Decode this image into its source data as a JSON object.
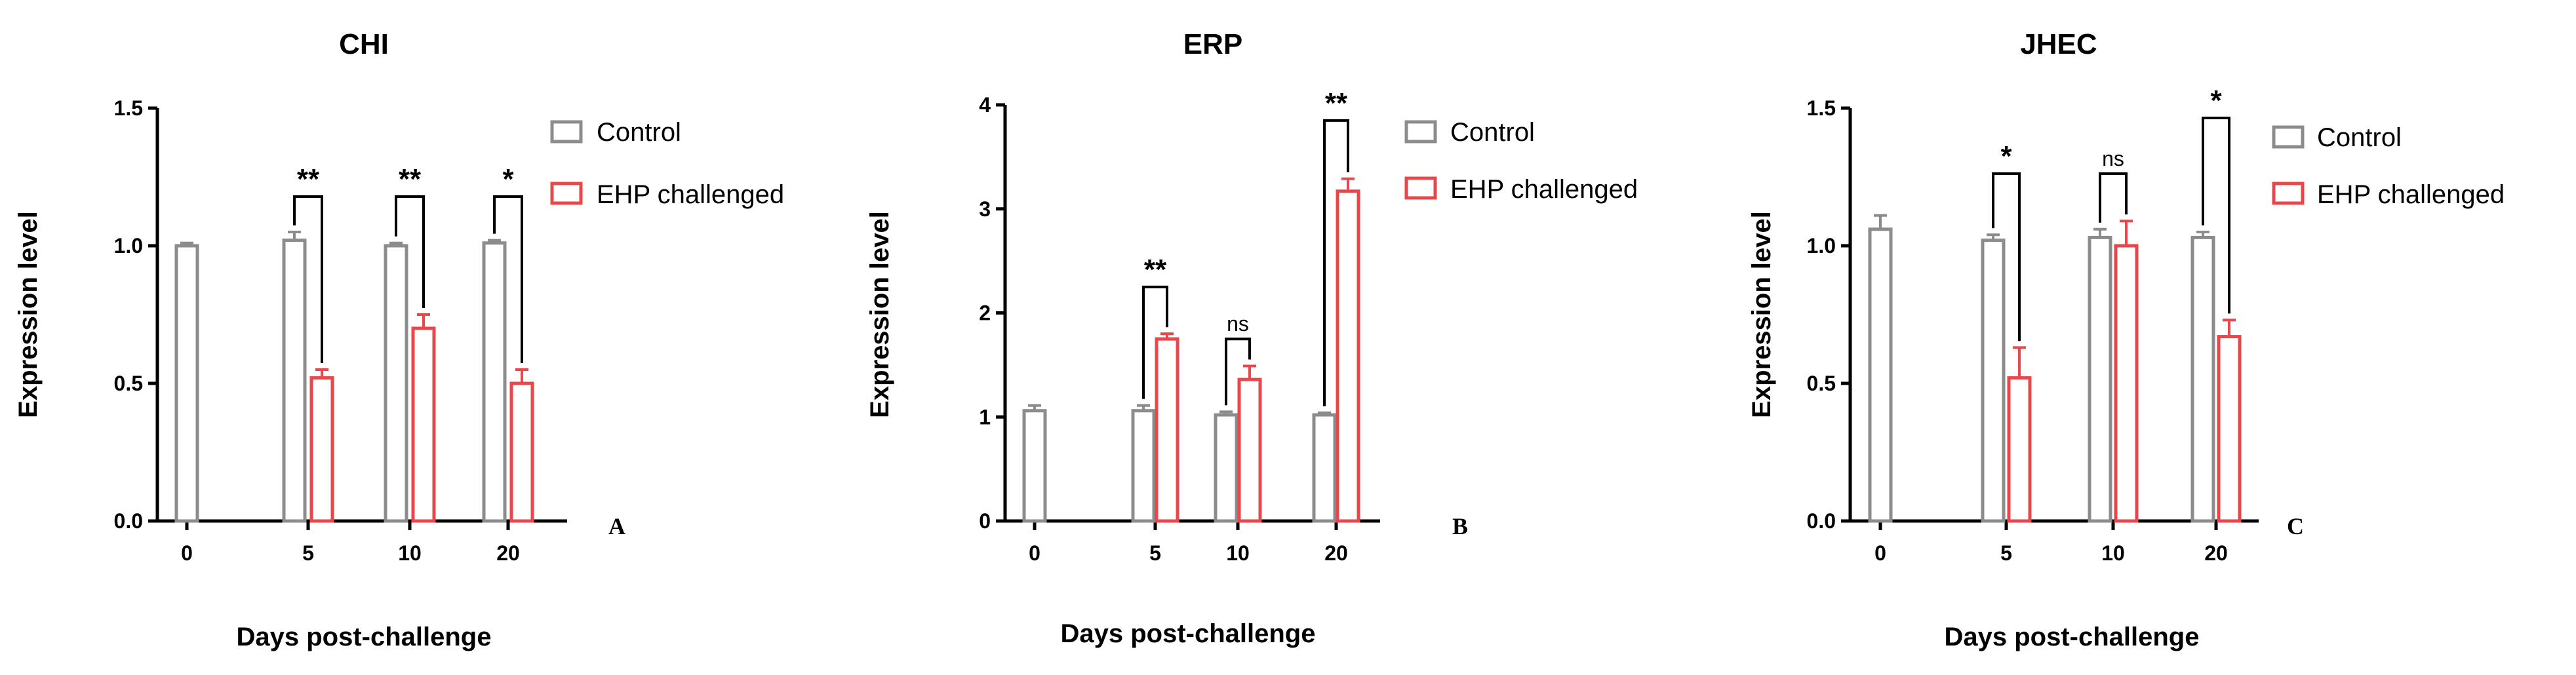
{
  "colors": {
    "control": "#8c8c8c",
    "ehp": "#e8474c",
    "axis": "#000000"
  },
  "chart_data": [
    {
      "type": "bar",
      "panel": "A",
      "title": "CHI",
      "xlabel": "Days post-challenge",
      "ylabel": "Expression level",
      "categories": [
        "0",
        "5",
        "10",
        "20"
      ],
      "ylim": [
        0,
        1.5
      ],
      "yticks": [
        "0.0",
        "0.5",
        "1.0",
        "1.5"
      ],
      "series": [
        {
          "name": "Control",
          "values": [
            1.0,
            1.02,
            1.0,
            1.01
          ],
          "errors": [
            0.01,
            0.03,
            0.01,
            0.01
          ]
        },
        {
          "name": "EHP challenged",
          "values": [
            null,
            0.52,
            0.7,
            0.5
          ],
          "errors": [
            null,
            0.03,
            0.05,
            0.05
          ]
        }
      ],
      "significance": [
        {
          "category": "5",
          "label": "**"
        },
        {
          "category": "10",
          "label": "**"
        },
        {
          "category": "20",
          "label": "*"
        }
      ]
    },
    {
      "type": "bar",
      "panel": "B",
      "title": "ERP",
      "xlabel": "Days post-challenge",
      "ylabel": "Expression level",
      "categories": [
        "0",
        "5",
        "10",
        "20"
      ],
      "ylim": [
        0,
        4
      ],
      "yticks": [
        "0",
        "1",
        "2",
        "3",
        "4"
      ],
      "series": [
        {
          "name": "Control",
          "values": [
            1.06,
            1.06,
            1.02,
            1.02
          ],
          "errors": [
            0.05,
            0.05,
            0.03,
            0.02
          ]
        },
        {
          "name": "EHP challenged",
          "values": [
            null,
            1.75,
            1.36,
            3.17
          ],
          "errors": [
            null,
            0.05,
            0.13,
            0.12
          ]
        }
      ],
      "significance": [
        {
          "category": "5",
          "label": "**"
        },
        {
          "category": "10",
          "label": "ns"
        },
        {
          "category": "20",
          "label": "**"
        }
      ]
    },
    {
      "type": "bar",
      "panel": "C",
      "title": "JHEC",
      "xlabel": "Days post-challenge",
      "ylabel": "Expression level",
      "categories": [
        "0",
        "5",
        "10",
        "20"
      ],
      "ylim": [
        0,
        1.5
      ],
      "yticks": [
        "0.0",
        "0.5",
        "1.0",
        "1.5"
      ],
      "series": [
        {
          "name": "Control",
          "values": [
            1.06,
            1.02,
            1.03,
            1.03
          ],
          "errors": [
            0.05,
            0.02,
            0.03,
            0.02
          ]
        },
        {
          "name": "EHP challenged",
          "values": [
            null,
            0.52,
            1.0,
            0.67
          ],
          "errors": [
            null,
            0.11,
            0.09,
            0.06
          ]
        }
      ],
      "significance": [
        {
          "category": "5",
          "label": "*"
        },
        {
          "category": "10",
          "label": "ns"
        },
        {
          "category": "20",
          "label": "*"
        }
      ]
    }
  ]
}
